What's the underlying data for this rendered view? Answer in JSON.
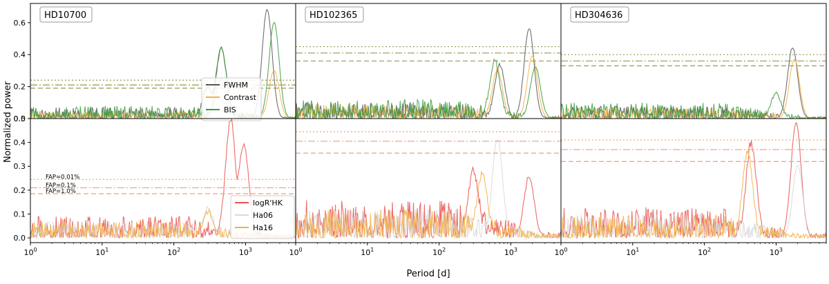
{
  "figure": {
    "xlabel": "Period [d]",
    "ylabel": "Normalized power"
  },
  "chart_data": [
    {
      "type": "line",
      "panel": "HD10700-activity",
      "title": "HD10700",
      "xscale": "log",
      "xlim": [
        1,
        5000
      ],
      "ylim": [
        0,
        0.72
      ],
      "yticks": [
        0.0,
        0.2,
        0.4,
        0.6
      ],
      "series": [
        {
          "name": "FWHM",
          "color": "#555555",
          "peaks": [
            [
              300,
              0.2
            ],
            [
              460,
              0.44
            ],
            [
              2000,
              0.68
            ]
          ],
          "noise": 0.07
        },
        {
          "name": "Contrast",
          "color": "#f5b041",
          "peaks": [
            [
              460,
              0.25
            ],
            [
              2500,
              0.3
            ]
          ],
          "noise": 0.05
        },
        {
          "name": "BIS",
          "color": "#3c9a3c",
          "peaks": [
            [
              460,
              0.43
            ],
            [
              2500,
              0.6
            ]
          ],
          "noise": 0.08
        }
      ],
      "fap_levels": [
        0.24,
        0.21,
        0.19
      ],
      "fap_color": "#a0a060",
      "legend": "lower-right"
    },
    {
      "type": "line",
      "panel": "HD102365-activity",
      "title": "HD102365",
      "xscale": "log",
      "xlim": [
        1,
        5000
      ],
      "ylim": [
        0,
        0.72
      ],
      "series": [
        {
          "name": "FWHM",
          "color": "#555555",
          "peaks": [
            [
              700,
              0.33
            ],
            [
              1800,
              0.56
            ]
          ],
          "noise": 0.1
        },
        {
          "name": "Contrast",
          "color": "#f5b041",
          "peaks": [
            [
              650,
              0.3
            ],
            [
              2000,
              0.39
            ]
          ],
          "noise": 0.09
        },
        {
          "name": "BIS",
          "color": "#3c9a3c",
          "peaks": [
            [
              600,
              0.35
            ],
            [
              2200,
              0.32
            ]
          ],
          "noise": 0.12
        }
      ],
      "fap_levels": [
        0.45,
        0.41,
        0.36
      ],
      "fap_color": "#a0a060"
    },
    {
      "type": "line",
      "panel": "HD304636-activity",
      "title": "HD304636",
      "xscale": "log",
      "xlim": [
        1,
        5000
      ],
      "ylim": [
        0,
        0.72
      ],
      "series": [
        {
          "name": "FWHM",
          "color": "#555555",
          "peaks": [
            [
              1700,
              0.44
            ]
          ],
          "noise": 0.08
        },
        {
          "name": "Contrast",
          "color": "#f5b041",
          "peaks": [
            [
              1800,
              0.37
            ]
          ],
          "noise": 0.07
        },
        {
          "name": "BIS",
          "color": "#3c9a3c",
          "peaks": [
            [
              1000,
              0.15
            ]
          ],
          "noise": 0.1
        }
      ],
      "fap_levels": [
        0.4,
        0.36,
        0.33
      ],
      "fap_color": "#a0a060"
    },
    {
      "type": "line",
      "panel": "HD10700-chromospheric",
      "title": "",
      "xscale": "log",
      "xlim": [
        1,
        5000
      ],
      "ylim": [
        -0.02,
        0.5
      ],
      "yticks": [
        0.0,
        0.1,
        0.2,
        0.3,
        0.4,
        0.5
      ],
      "series": [
        {
          "name": "logR'HK",
          "color": "#e8514f",
          "peaks": [
            [
              620,
              0.49
            ],
            [
              950,
              0.38
            ]
          ],
          "noise": 0.09
        },
        {
          "name": "Ha06",
          "color": "#d8d8d8",
          "peaks": [
            [
              300,
              0.12
            ]
          ],
          "noise": 0.07
        },
        {
          "name": "Ha16",
          "color": "#f5b041",
          "peaks": [
            [
              300,
              0.1
            ]
          ],
          "noise": 0.07
        }
      ],
      "fap_levels": [
        0.245,
        0.21,
        0.185
      ],
      "fap_labels": [
        "FAP=0.01%",
        "FAP=0.1%",
        "FAP=1.0%"
      ],
      "fap_color": "#f4a582",
      "legend": "lower-right"
    },
    {
      "type": "line",
      "panel": "HD102365-chromospheric",
      "title": "",
      "xscale": "log",
      "xlim": [
        1,
        5000
      ],
      "ylim": [
        -0.02,
        0.5
      ],
      "series": [
        {
          "name": "logR'HK",
          "color": "#e8514f",
          "peaks": [
            [
              300,
              0.27
            ],
            [
              1800,
              0.25
            ]
          ],
          "noise": 0.16
        },
        {
          "name": "Ha06",
          "color": "#d8d8d8",
          "peaks": [
            [
              650,
              0.4
            ]
          ],
          "noise": 0.12
        },
        {
          "name": "Ha16",
          "color": "#f5b041",
          "peaks": [
            [
              400,
              0.26
            ]
          ],
          "noise": 0.12
        }
      ],
      "fap_levels": [
        0.445,
        0.405,
        0.355
      ],
      "fap_color": "#f4a582"
    },
    {
      "type": "line",
      "panel": "HD304636-chromospheric",
      "title": "",
      "xscale": "log",
      "xlim": [
        1,
        5000
      ],
      "ylim": [
        -0.02,
        0.5
      ],
      "series": [
        {
          "name": "logR'HK",
          "color": "#e8514f",
          "peaks": [
            [
              450,
              0.38
            ],
            [
              1900,
              0.48
            ]
          ],
          "noise": 0.13
        },
        {
          "name": "Ha06",
          "color": "#d8d8d8",
          "peaks": [
            [
              2000,
              0.3
            ]
          ],
          "noise": 0.1
        },
        {
          "name": "Ha16",
          "color": "#f5b041",
          "peaks": [
            [
              400,
              0.35
            ]
          ],
          "noise": 0.1
        }
      ],
      "fap_levels": [
        0.41,
        0.37,
        0.32
      ],
      "fap_color": "#f4a582"
    }
  ]
}
